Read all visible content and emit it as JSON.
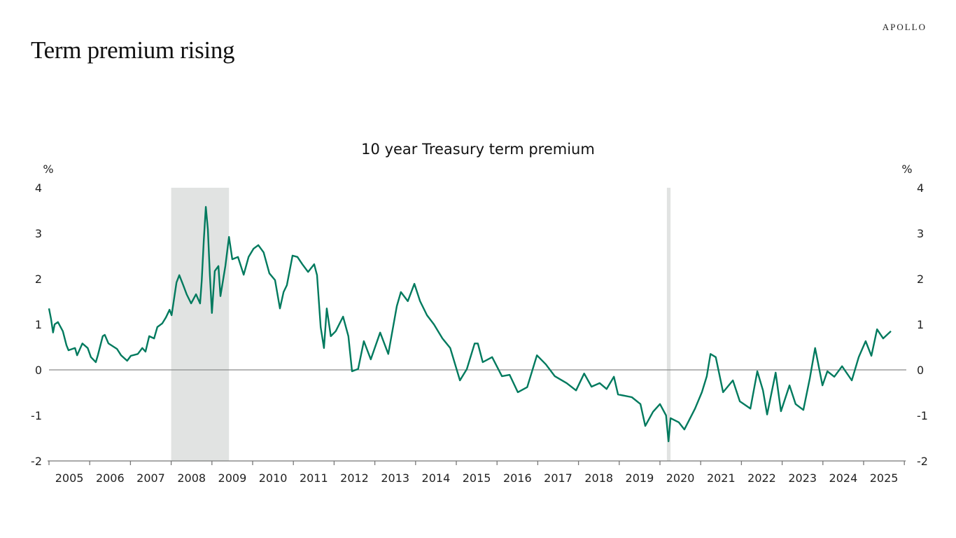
{
  "header": {
    "title": "Term premium rising",
    "logo": "APOLLO"
  },
  "chart_data": {
    "type": "line",
    "title": "10 year Treasury term premium",
    "ylabel_left": "%",
    "ylabel_right": "%",
    "ylim": [
      -2,
      4
    ],
    "yticks": [
      "4",
      "3",
      "2",
      "1",
      "0",
      "-1",
      "-2"
    ],
    "ytick_values": [
      4,
      3,
      2,
      1,
      0,
      -1,
      -2
    ],
    "xlim": [
      2005,
      2026
    ],
    "xticks": [
      "2005",
      "2006",
      "2007",
      "2008",
      "2009",
      "2010",
      "2011",
      "2012",
      "2013",
      "2014",
      "2015",
      "2016",
      "2017",
      "2018",
      "2019",
      "2020",
      "2021",
      "2022",
      "2023",
      "2024",
      "2025"
    ],
    "grid": false,
    "zero_line": true,
    "line_color": "#007a5e",
    "recession_color": "#e1e3e2",
    "recessions": [
      [
        2008.0,
        2009.42
      ],
      [
        2020.17,
        2020.26
      ]
    ],
    "series": [
      {
        "x": [
          2005.0,
          2005.05,
          2005.1,
          2005.14,
          2005.22,
          2005.34,
          2005.43,
          2005.48,
          2005.64,
          2005.69,
          2005.82,
          2005.95,
          2006.03,
          2006.15,
          2006.2,
          2006.32,
          2006.37,
          2006.46,
          2006.67,
          2006.77,
          2006.92,
          2007.01,
          2007.18,
          2007.29,
          2007.37,
          2007.46,
          2007.58,
          2007.66,
          2007.78,
          2007.87,
          2007.96,
          2008.01,
          2008.13,
          2008.2,
          2008.3,
          2008.38,
          2008.49,
          2008.61,
          2008.71,
          2008.75,
          2008.8,
          2008.85,
          2008.9,
          2008.95,
          2009.0,
          2009.07,
          2009.16,
          2009.21,
          2009.33,
          2009.42,
          2009.5,
          2009.64,
          2009.78,
          2009.9,
          2010.02,
          2010.14,
          2010.27,
          2010.41,
          2010.55,
          2010.67,
          2010.76,
          2010.84,
          2010.98,
          2011.1,
          2011.22,
          2011.36,
          2011.51,
          2011.58,
          2011.67,
          2011.75,
          2011.82,
          2011.92,
          2012.04,
          2012.22,
          2012.35,
          2012.44,
          2012.59,
          2012.73,
          2012.9,
          2013.13,
          2013.33,
          2013.54,
          2013.64,
          2013.81,
          2013.97,
          2014.11,
          2014.28,
          2014.45,
          2014.66,
          2014.85,
          2015.09,
          2015.26,
          2015.45,
          2015.53,
          2015.65,
          2015.88,
          2016.12,
          2016.31,
          2016.51,
          2016.74,
          2016.98,
          2017.2,
          2017.42,
          2017.71,
          2017.94,
          2018.14,
          2018.32,
          2018.52,
          2018.69,
          2018.87,
          2018.97,
          2019.31,
          2019.52,
          2019.64,
          2019.83,
          2020.0,
          2020.15,
          2020.21,
          2020.26,
          2020.46,
          2020.6,
          2020.86,
          2021.03,
          2021.15,
          2021.24,
          2021.37,
          2021.55,
          2021.79,
          2021.96,
          2022.22,
          2022.39,
          2022.53,
          2022.63,
          2022.84,
          2022.97,
          2023.18,
          2023.33,
          2023.52,
          2023.68,
          2023.81,
          2023.99,
          2024.11,
          2024.28,
          2024.47,
          2024.71,
          2024.88,
          2025.05,
          2025.19,
          2025.33,
          2025.48,
          2025.67
        ],
        "y": [
          1.35,
          1.12,
          0.82,
          1.0,
          1.05,
          0.85,
          0.54,
          0.43,
          0.48,
          0.32,
          0.58,
          0.48,
          0.28,
          0.17,
          0.32,
          0.74,
          0.77,
          0.58,
          0.46,
          0.32,
          0.2,
          0.31,
          0.35,
          0.48,
          0.4,
          0.74,
          0.69,
          0.94,
          1.02,
          1.15,
          1.32,
          1.2,
          1.92,
          2.08,
          1.85,
          1.66,
          1.46,
          1.66,
          1.46,
          1.97,
          2.85,
          3.58,
          3.09,
          2.08,
          1.25,
          2.17,
          2.28,
          1.62,
          2.28,
          2.92,
          2.43,
          2.48,
          2.09,
          2.48,
          2.66,
          2.74,
          2.58,
          2.12,
          1.97,
          1.35,
          1.71,
          1.86,
          2.51,
          2.48,
          2.32,
          2.15,
          2.32,
          2.08,
          0.94,
          0.48,
          1.35,
          0.74,
          0.85,
          1.17,
          0.74,
          -0.03,
          0.02,
          0.63,
          0.23,
          0.82,
          0.35,
          1.4,
          1.71,
          1.51,
          1.89,
          1.51,
          1.2,
          1.0,
          0.69,
          0.48,
          -0.23,
          0.02,
          0.58,
          0.58,
          0.17,
          0.28,
          -0.14,
          -0.11,
          -0.49,
          -0.38,
          0.32,
          0.12,
          -0.14,
          -0.29,
          -0.45,
          -0.08,
          -0.37,
          -0.29,
          -0.42,
          -0.15,
          -0.54,
          -0.6,
          -0.75,
          -1.23,
          -0.92,
          -0.75,
          -1.0,
          -1.57,
          -1.06,
          -1.15,
          -1.31,
          -0.85,
          -0.49,
          -0.14,
          0.35,
          0.28,
          -0.49,
          -0.23,
          -0.69,
          -0.85,
          -0.03,
          -0.45,
          -0.98,
          -0.06,
          -0.91,
          -0.34,
          -0.75,
          -0.88,
          -0.18,
          0.48,
          -0.34,
          -0.03,
          -0.15,
          0.08,
          -0.23,
          0.28,
          0.63,
          0.31,
          0.89,
          0.69,
          0.85
        ]
      }
    ]
  }
}
